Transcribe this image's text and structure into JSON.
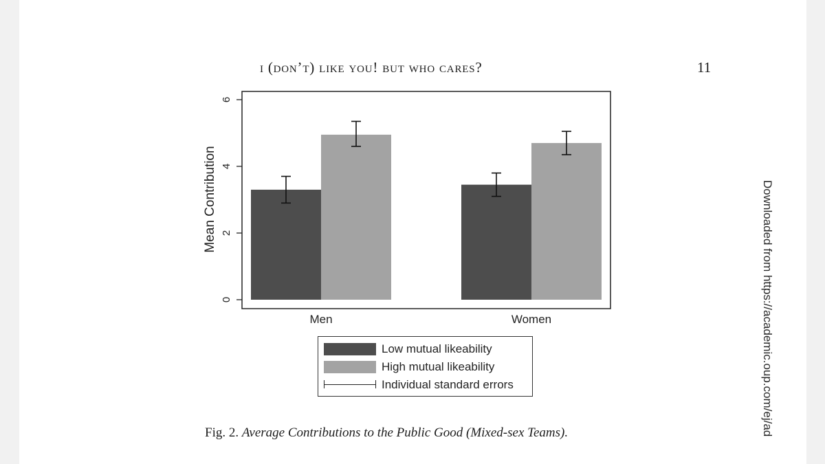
{
  "header": {
    "running_head": "i (don’t) like you! but who cares?",
    "page_number": "11"
  },
  "caption": {
    "prefix": "Fig. 2.",
    "title": "Average Contributions to the Public Good (Mixed-sex Teams)."
  },
  "side_note": "Downloaded from https://academic.oup.com/ej/ad",
  "legend": {
    "items": [
      {
        "label": "Low mutual likeability",
        "kind": "bar",
        "color": "#4d4d4d"
      },
      {
        "label": "High mutual likeability",
        "kind": "bar",
        "color": "#a3a3a3"
      },
      {
        "label": "Individual standard errors",
        "kind": "errorbar",
        "color": "#222222"
      }
    ]
  },
  "chart_data": {
    "type": "bar",
    "ylabel": "Mean Contribution",
    "xlabel": "",
    "ylim": [
      0,
      6
    ],
    "yticks": [
      0,
      2,
      4,
      6
    ],
    "categories": [
      "Men",
      "Women"
    ],
    "series": [
      {
        "name": "Low mutual likeability",
        "color": "#4d4d4d",
        "values": [
          3.3,
          3.45
        ],
        "err_low": [
          2.9,
          3.1
        ],
        "err_high": [
          3.7,
          3.8
        ]
      },
      {
        "name": "High mutual likeability",
        "color": "#a3a3a3",
        "values": [
          4.95,
          4.7
        ],
        "err_low": [
          4.6,
          4.35
        ],
        "err_high": [
          5.35,
          5.05
        ]
      }
    ],
    "grid": false,
    "legend_position": "bottom"
  }
}
